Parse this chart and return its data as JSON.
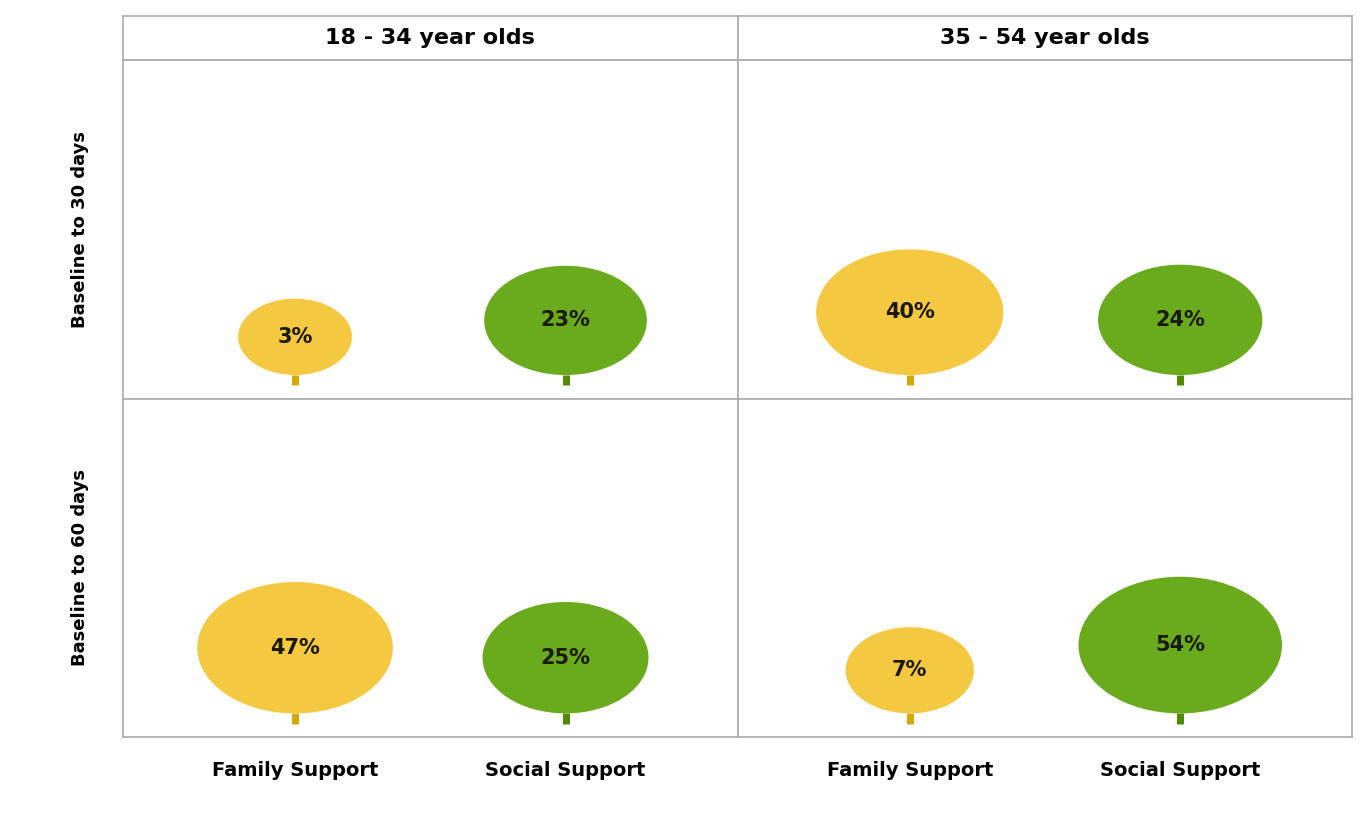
{
  "col_headers": [
    "18 - 34 year olds",
    "35 - 54 year olds"
  ],
  "row_headers": [
    "Baseline to 30 days",
    "Baseline to 60 days"
  ],
  "x_labels": [
    "Family Support",
    "Social Support"
  ],
  "cells": [
    [
      {
        "family": 3,
        "social": 23
      },
      {
        "family": 40,
        "social": 24
      }
    ],
    [
      {
        "family": 47,
        "social": 25
      },
      {
        "family": 7,
        "social": 54
      }
    ]
  ],
  "family_color": "#F5C842",
  "social_color": "#6AAB1E",
  "stem_family_color": "#D4A800",
  "stem_social_color": "#4F8A00",
  "text_color": "#1A1A00",
  "background_color": "#FFFFFF",
  "grid_color": "#AAAAAA",
  "header_fontsize": 16,
  "label_fontsize": 14,
  "value_fontsize": 15,
  "row_header_fontsize": 13
}
